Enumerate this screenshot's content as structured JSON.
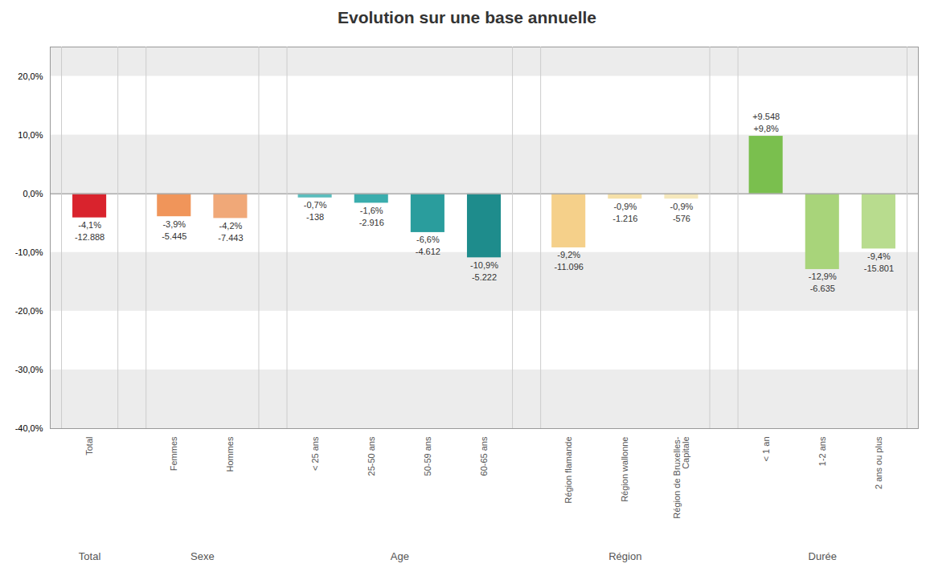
{
  "chart_data": {
    "type": "bar",
    "title": "Evolution sur une base annuelle",
    "categories": [
      "Total",
      "Femmes",
      "Hommes",
      "< 25 ans",
      "25-50 ans",
      "50-59 ans",
      "60-65 ans",
      "Région flamande",
      "Région wallonne",
      "Région de Bruxelles-\nCapitale",
      "< 1 an",
      "1-2 ans",
      "2 ans ou plus"
    ],
    "groups": [
      "Total",
      "Sexe",
      "Sexe",
      "Age",
      "Age",
      "Age",
      "Age",
      "Région",
      "Région",
      "Région",
      "Durée",
      "Durée",
      "Durée"
    ],
    "values": [
      -4.1,
      -3.9,
      -4.2,
      -0.7,
      -1.6,
      -6.6,
      -10.9,
      -9.2,
      -0.9,
      -0.9,
      9.8,
      -12.9,
      -9.4
    ],
    "value_labels": [
      "-4,1%",
      "-3,9%",
      "-4,2%",
      "-0,7%",
      "-1,6%",
      "-6,6%",
      "-10,9%",
      "-9,2%",
      "-0,9%",
      "-0,9%",
      "+9,8%",
      "-12,9%",
      "-9,4%"
    ],
    "counts": [
      -12888,
      -5445,
      -7443,
      -138,
      -2916,
      -4612,
      -5222,
      -11096,
      -1216,
      -576,
      9548,
      -6635,
      -15801
    ],
    "count_labels": [
      "-12.888",
      "-5.445",
      "-7.443",
      "-138",
      "-2.916",
      "-4.612",
      "-5.222",
      "-11.096",
      "-1.216",
      "-576",
      "+9.548",
      "-6.635",
      "-15.801"
    ],
    "colors": [
      "#d9232d",
      "#f0955a",
      "#f0a878",
      "#5bbdbd",
      "#3aadad",
      "#2a9d9d",
      "#1e8c8c",
      "#f5d08a",
      "#f5e0a8",
      "#f5e8bc",
      "#7abf4e",
      "#a8d47a",
      "#b8dc8e"
    ],
    "ylim": [
      -40,
      25
    ],
    "yticks": [
      {
        "value": 20,
        "label": "20,0%"
      },
      {
        "value": 10,
        "label": "10,0%"
      },
      {
        "value": 0,
        "label": "0,0%"
      },
      {
        "value": -10,
        "label": "-10,0%"
      },
      {
        "value": -20,
        "label": "-20,0%"
      },
      {
        "value": -30,
        "label": "-30,0%"
      },
      {
        "value": -40,
        "label": "-40,0%"
      }
    ],
    "grid": true,
    "data_labels": true
  }
}
